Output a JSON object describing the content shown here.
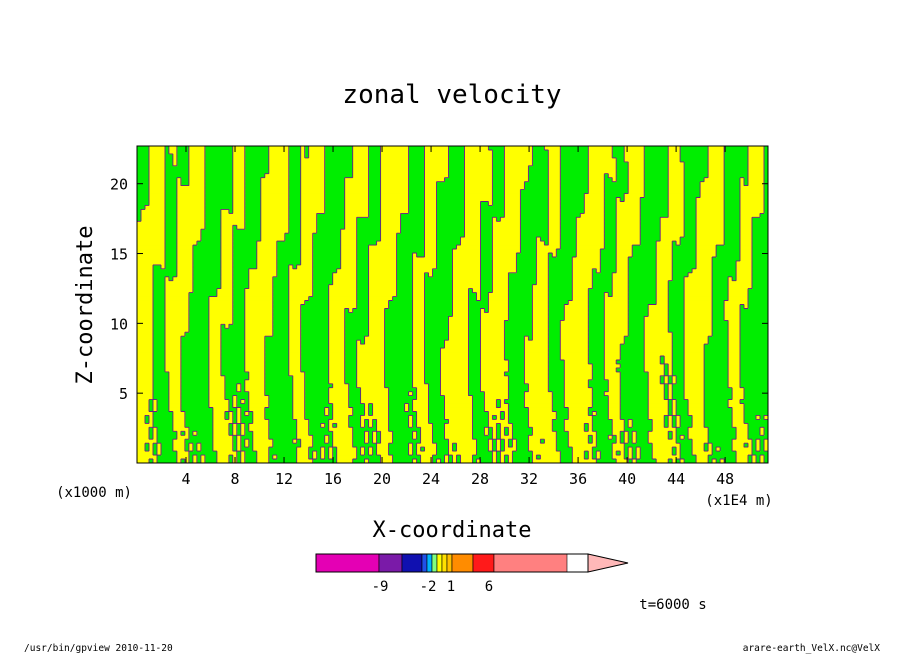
{
  "chart_data": {
    "type": "heatmap",
    "title": "zonal velocity",
    "xlabel": "X-coordinate",
    "ylabel": "Z-coordinate",
    "x_unit": "(x1000 m)",
    "x_scale": "(x1E4 m)",
    "xlim": [
      0,
      51.5
    ],
    "ylim": [
      0,
      22.7
    ],
    "x_ticks": [
      "4",
      "8",
      "12",
      "16",
      "20",
      "24",
      "28",
      "32",
      "36",
      "40",
      "44",
      "48"
    ],
    "y_ticks": [
      "5",
      "10",
      "15",
      "20"
    ],
    "fill_colors": {
      "positive": "#ffff00",
      "negative": "#00ee00",
      "contour": "#6b1a8a"
    },
    "colorbar": {
      "labels": [
        "-9",
        "-2",
        "1",
        "6"
      ],
      "colors": [
        "#e400b4",
        "#7a1aa8",
        "#1010b0",
        "#2050e8",
        "#00b4ff",
        "#80ff80",
        "#ffff00",
        "#ffe000",
        "#ffc000",
        "#ff8c00",
        "#ff1a1a",
        "#ff8080",
        "#ffb8b8"
      ]
    },
    "time_label": "t=6000 s"
  },
  "footer": {
    "left": "/usr/bin/gpview  2010-11-20",
    "right": "arare-earth_VelX.nc@VelX"
  }
}
